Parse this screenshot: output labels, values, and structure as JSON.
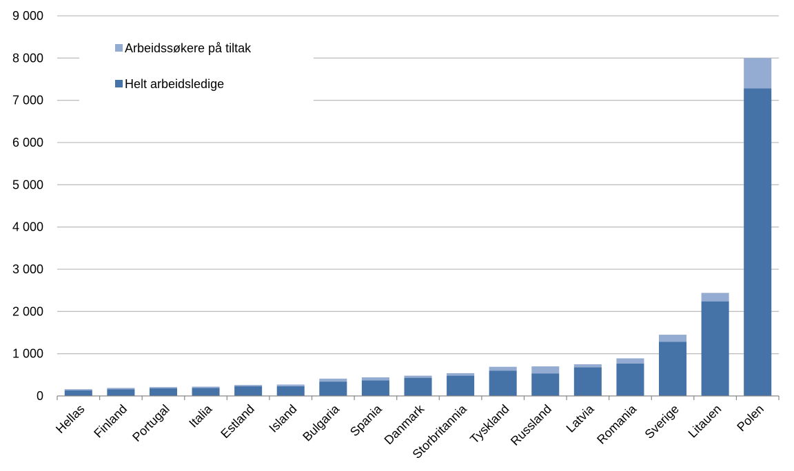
{
  "chart_data": {
    "type": "bar",
    "stacked": true,
    "categories": [
      "Hellas",
      "Finland",
      "Portugal",
      "Italia",
      "Estland",
      "Island",
      "Bulgaria",
      "Spania",
      "Danmark",
      "Storbritannia",
      "Tyskland",
      "Russland",
      "Latvia",
      "Romania",
      "Sverige",
      "Litauen",
      "Polen"
    ],
    "series": [
      {
        "name": "Helt arbeidsledige",
        "color": "#4572a7",
        "values": [
          130,
          160,
          180,
          190,
          230,
          230,
          340,
          370,
          430,
          480,
          600,
          530,
          680,
          770,
          1280,
          2240,
          7280
        ]
      },
      {
        "name": "Arbeidssøkere på tiltak",
        "color": "#94abd2",
        "values": [
          30,
          30,
          30,
          30,
          30,
          40,
          70,
          70,
          50,
          60,
          90,
          170,
          70,
          120,
          170,
          200,
          720
        ]
      }
    ],
    "ylim": [
      0,
      9000
    ],
    "yticks": [
      0,
      1000,
      2000,
      3000,
      4000,
      5000,
      6000,
      7000,
      8000,
      9000
    ],
    "ytick_labels": [
      "0",
      "1 000",
      "2 000",
      "3 000",
      "4 000",
      "5 000",
      "6 000",
      "7 000",
      "8 000",
      "9 000"
    ],
    "grid": true,
    "legend_position": "top-left",
    "legend_order": [
      "Arbeidssøkere på tiltak",
      "Helt arbeidsledige"
    ],
    "title": "",
    "xlabel": "",
    "ylabel": ""
  }
}
